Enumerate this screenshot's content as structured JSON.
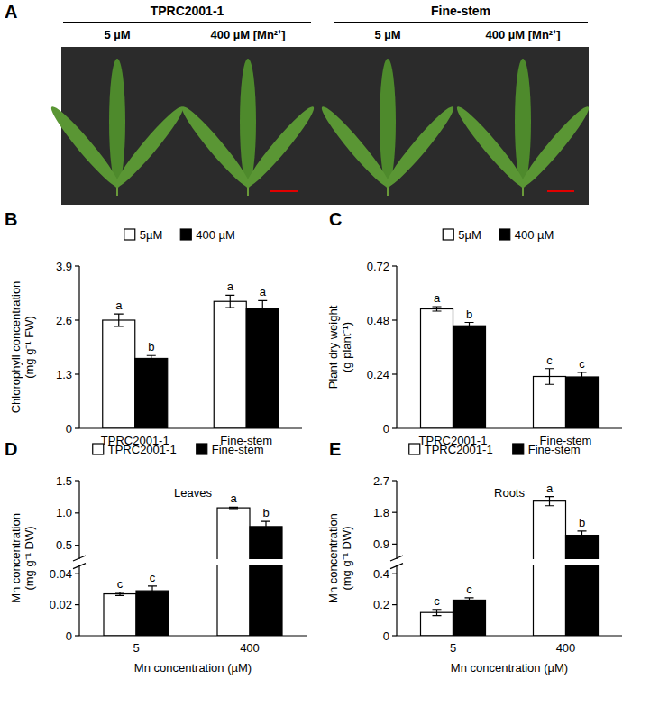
{
  "panel_a": {
    "label": "A",
    "groups": [
      {
        "name": "TPRC2001-1",
        "conditions": [
          "5 µM",
          "400 µM [Mn²⁺]"
        ]
      },
      {
        "name": "Fine-stem",
        "conditions": [
          "5 µM",
          "400 µM [Mn²⁺]"
        ]
      }
    ]
  },
  "chart_data": [
    {
      "type": "bar",
      "panel": "B",
      "y_label": "Chlorophyll concentration (mg g⁻¹ FW)",
      "categories": [
        "TPRC2001-1",
        "Fine-stem"
      ],
      "series": [
        {
          "name": "5µM",
          "color": "#ffffff",
          "values": [
            2.6,
            3.05
          ],
          "errors": [
            0.15,
            0.15
          ],
          "letters": [
            "a",
            "a"
          ]
        },
        {
          "name": "400 µM",
          "color": "#000000",
          "values": [
            1.68,
            2.87
          ],
          "errors": [
            0.07,
            0.2
          ],
          "letters": [
            "b",
            "a"
          ]
        }
      ],
      "ylim": [
        0,
        3.9
      ],
      "yticks": [
        0,
        1.3,
        2.6,
        3.9
      ],
      "legend": "top"
    },
    {
      "type": "bar",
      "panel": "C",
      "y_label": "Plant dry weight (g plant⁻¹)",
      "categories": [
        "TPRC2001-1",
        "Fine-stem"
      ],
      "series": [
        {
          "name": "5µM",
          "color": "#ffffff",
          "values": [
            0.53,
            0.23
          ],
          "errors": [
            0.01,
            0.035
          ],
          "letters": [
            "a",
            "c"
          ]
        },
        {
          "name": "400 µM",
          "color": "#000000",
          "values": [
            0.455,
            0.228
          ],
          "errors": [
            0.015,
            0.02
          ],
          "letters": [
            "b",
            "c"
          ]
        }
      ],
      "ylim": [
        0,
        0.72
      ],
      "yticks": [
        0,
        0.24,
        0.48,
        0.72
      ],
      "legend": "top"
    },
    {
      "type": "bar",
      "panel": "D",
      "title": "Leaves",
      "y_label": "Mn concentration (mg g⁻¹ DW)",
      "x_label": "Mn concentration (µM)",
      "categories": [
        "5",
        "400"
      ],
      "series": [
        {
          "name": "TPRC2001-1",
          "color": "#ffffff",
          "values": [
            0.027,
            1.08
          ],
          "errors": [
            0.001,
            0.01
          ],
          "letters": [
            "c",
            "a"
          ]
        },
        {
          "name": "Fine-stem",
          "color": "#000000",
          "values": [
            0.029,
            0.79
          ],
          "errors": [
            0.003,
            0.08
          ],
          "letters": [
            "c",
            "b"
          ]
        }
      ],
      "ylim": [
        0,
        1.5
      ],
      "ybreak": [
        0.045,
        0.3
      ],
      "yticks": [
        0,
        0.02,
        0.04,
        0.5,
        {
          "value": 1,
          "label": "1.0"
        },
        1.5
      ],
      "legend": "top"
    },
    {
      "type": "bar",
      "panel": "E",
      "title": "Roots",
      "y_label": "Mn concentration (mg g⁻¹ DW)",
      "x_label": "Mn concentration (µM)",
      "categories": [
        "5",
        "400"
      ],
      "series": [
        {
          "name": "TPRC2001-1",
          "color": "#ffffff",
          "values": [
            0.15,
            2.12
          ],
          "errors": [
            0.02,
            0.13
          ],
          "letters": [
            "c",
            "a"
          ]
        },
        {
          "name": "Fine-stem",
          "color": "#000000",
          "values": [
            0.23,
            1.15
          ],
          "errors": [
            0.015,
            0.12
          ],
          "letters": [
            "c",
            "b"
          ]
        }
      ],
      "ylim": [
        0,
        2.7
      ],
      "ybreak": [
        0.45,
        0.5
      ],
      "yticks": [
        0,
        0.2,
        0.4,
        0.9,
        1.8,
        2.7
      ],
      "legend": "top"
    }
  ]
}
